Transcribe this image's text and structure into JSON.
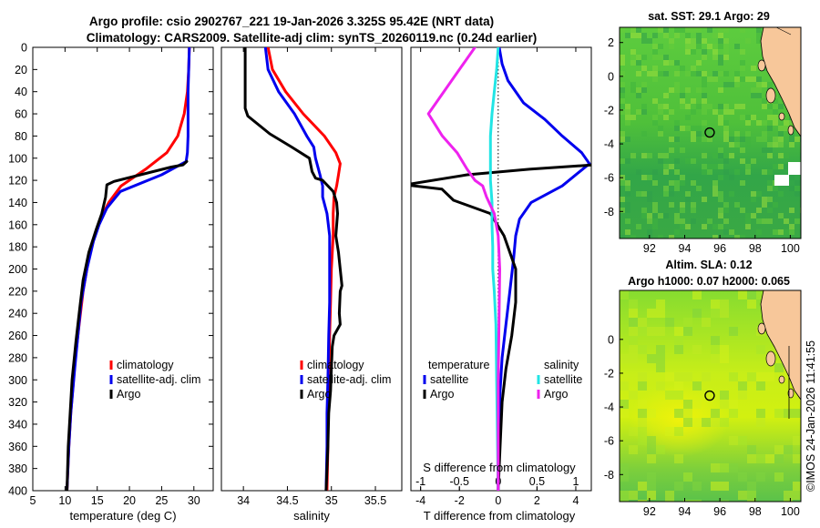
{
  "header": {
    "line1": "Argo profile: csio 2902767_221 19-Jan-2026 3.325S 95.42E (NRT data)",
    "line2": "Climatology: CARS2009. Satellite-adj clim: synTS_20260119.nc (0.24d earlier)"
  },
  "timestamp": "©IMOS 24-Jan-2026 11:41:55",
  "colors": {
    "climatology": "#ff0000",
    "satellite": "#0000ee",
    "argo": "#000000",
    "sal_satellite": "#22e5e5",
    "sal_argo": "#ee22ee",
    "sst_map": "#57c83a",
    "sla_map": "#8ee02a",
    "land": "#f7c79a",
    "gap": "#ffffff"
  },
  "chart_data": [
    {
      "id": "temperature",
      "type": "line",
      "xlabel": "temperature (deg C)",
      "ylabel": "",
      "xlim": [
        5,
        33
      ],
      "ylim": [
        400,
        0
      ],
      "xticks": [
        5,
        10,
        15,
        20,
        25,
        30
      ],
      "yticks": [
        0,
        20,
        40,
        60,
        80,
        100,
        120,
        140,
        160,
        180,
        200,
        220,
        240,
        260,
        280,
        300,
        320,
        340,
        360,
        380,
        400
      ],
      "legend": {
        "position": "lower-right",
        "entries": [
          "climatology",
          "satellite-adj. clim",
          "Argo"
        ]
      },
      "series": [
        {
          "name": "climatology",
          "color": "#ff0000",
          "x": [
            29.3,
            29.2,
            29,
            28.5,
            27.5,
            25.8,
            22.5,
            18.7,
            16.8,
            15.5,
            14.6,
            13.7,
            12.8,
            12.2,
            11.6,
            10.9,
            10.6,
            10.3
          ],
          "y": [
            0,
            20,
            40,
            60,
            80,
            95,
            110,
            125,
            140,
            155,
            170,
            190,
            220,
            250,
            280,
            330,
            360,
            400
          ]
        },
        {
          "name": "satellite-adj. clim",
          "color": "#0000ee",
          "x": [
            29.3,
            29.2,
            29.1,
            29.1,
            29.1,
            29,
            28.8,
            25,
            18.6,
            16.5,
            15.3,
            14.4,
            13.4,
            12.5,
            12,
            11.5,
            10.9,
            10.6,
            10.3
          ],
          "y": [
            0,
            20,
            40,
            60,
            80,
            95,
            103,
            115,
            130,
            145,
            160,
            175,
            200,
            230,
            260,
            290,
            330,
            360,
            400
          ]
        },
        {
          "name": "Argo",
          "color": "#000000",
          "x": [
            28.9,
            28.3,
            26.5,
            17.6,
            16.5,
            16.3,
            15.7,
            14.8,
            13.7,
            12.8,
            12.3,
            11.7,
            11.1,
            10.8,
            10.5,
            10.3
          ],
          "y": [
            103,
            106,
            108,
            121,
            124,
            135,
            150,
            165,
            185,
            210,
            235,
            265,
            300,
            330,
            360,
            400
          ]
        }
      ]
    },
    {
      "id": "salinity",
      "type": "line",
      "xlabel": "salinity",
      "ylabel": "",
      "xlim": [
        33.75,
        35.8
      ],
      "ylim": [
        400,
        0
      ],
      "xticks": [
        34,
        34.5,
        35,
        35.5
      ],
      "legend": {
        "position": "lower-right",
        "entries": [
          "climatology",
          "satellite-adj. clim",
          "Argo"
        ]
      },
      "series": [
        {
          "name": "climatology",
          "color": "#ff0000",
          "x": [
            34.28,
            34.33,
            34.48,
            34.68,
            34.92,
            35.05,
            35.1,
            35.08,
            35.06,
            35.03,
            35.02,
            35.02,
            35,
            34.99,
            34.98,
            34.97,
            34.96,
            34.96,
            34.95
          ],
          "y": [
            0,
            20,
            40,
            60,
            80,
            95,
            105,
            115,
            125,
            135,
            150,
            170,
            200,
            230,
            260,
            300,
            330,
            360,
            400
          ]
        },
        {
          "name": "satellite-adj. clim",
          "color": "#0000ee",
          "x": [
            34.25,
            34.28,
            34.4,
            34.58,
            34.72,
            34.8,
            34.82,
            34.87,
            34.9,
            34.9,
            34.95,
            34.98,
            34.98,
            34.98,
            34.97,
            34.96,
            34.95,
            34.95,
            34.94
          ],
          "y": [
            0,
            20,
            40,
            60,
            80,
            90,
            100,
            115,
            125,
            135,
            150,
            170,
            200,
            230,
            260,
            300,
            330,
            360,
            400
          ]
        },
        {
          "name": "Argo",
          "color": "#000000",
          "x": [
            34.02,
            34.02,
            34.02,
            34.02,
            34.05,
            34.3,
            34.55,
            34.75,
            34.78,
            34.82,
            34.9,
            35.02,
            35.06,
            35.07,
            35.05,
            35.08,
            35.1,
            35.12,
            35.1,
            35.09,
            35.1,
            35.03,
            35.01,
            35,
            34.99,
            34.97,
            34.96,
            34.95,
            34.94
          ],
          "y": [
            0,
            20,
            40,
            55,
            62,
            78,
            90,
            100,
            112,
            118,
            120,
            130,
            140,
            150,
            170,
            185,
            200,
            215,
            220,
            240,
            250,
            260,
            270,
            290,
            310,
            330,
            360,
            380,
            400
          ]
        }
      ]
    },
    {
      "id": "difference",
      "type": "line",
      "xlabel": "T difference from climatology",
      "xlabel_top": "S difference from climatology",
      "ylabel": "",
      "xlim": [
        -4.5,
        4.8
      ],
      "ylim": [
        400,
        0
      ],
      "xticks": [
        -4,
        -2,
        0,
        2,
        4
      ],
      "xlim_top": [
        -1.125,
        1.2
      ],
      "xticks_top": [
        -1,
        -0.5,
        0,
        0.5,
        1
      ],
      "xticklabels_top": [
        "-1",
        "-0.5",
        "0",
        "0.5",
        "1"
      ],
      "legend": {
        "position": "lower-center",
        "entries": [
          "temperature",
          "satellite",
          "Argo",
          "salinity",
          "satellite",
          "Argo"
        ]
      },
      "series": [
        {
          "name": "T satellite",
          "color": "#0000ee",
          "x": [
            0.05,
            0.2,
            0.5,
            1.3,
            2.4,
            3.3,
            4.3,
            4.7,
            3.3,
            1.7,
            1.1,
            0.9,
            0.8,
            0.6,
            0.4,
            0.2,
            0.1,
            0,
            0
          ],
          "y": [
            0,
            15,
            30,
            50,
            65,
            80,
            95,
            105,
            125,
            140,
            155,
            170,
            190,
            220,
            250,
            280,
            310,
            350,
            400
          ]
        },
        {
          "name": "T Argo",
          "color": "#000000",
          "x": [
            4.9,
            1.6,
            -1.6,
            -4.8,
            -2.9,
            -2.3,
            -0.4,
            0.3,
            0.9,
            0.9,
            0.7,
            0.4,
            0.2,
            0.1,
            0
          ],
          "y": [
            106,
            110,
            115,
            124,
            128,
            138,
            150,
            170,
            200,
            230,
            260,
            290,
            320,
            360,
            400
          ]
        },
        {
          "name": "S satellite",
          "color": "#22e5e5",
          "x": [
            0,
            -0.02,
            -0.05,
            -0.08,
            -0.1,
            -0.1,
            -0.1,
            -0.08,
            -0.08,
            -0.07,
            -0.07,
            -0.05,
            -0.03,
            -0.02,
            0
          ],
          "y": [
            0,
            20,
            40,
            60,
            80,
            100,
            120,
            140,
            160,
            180,
            200,
            220,
            250,
            300,
            400
          ]
        },
        {
          "name": "S Argo",
          "color": "#ee22ee",
          "x": [
            -0.3,
            -0.6,
            -0.9,
            -0.72,
            -0.53,
            -0.4,
            -0.3,
            -0.2,
            -0.15,
            -0.05,
            0,
            0.02,
            0,
            0
          ],
          "y": [
            0,
            30,
            60,
            80,
            95,
            110,
            120,
            125,
            135,
            150,
            170,
            200,
            300,
            400
          ]
        }
      ]
    },
    {
      "id": "sst_map",
      "type": "heatmap",
      "title": "sat. SST: 29.1 Argo: 29",
      "xlim": [
        90.3,
        100.6
      ],
      "ylim": [
        -9.6,
        2.9
      ],
      "xticks": [
        92,
        94,
        96,
        98,
        100
      ],
      "yticks": [
        -8,
        -6,
        -4,
        -2,
        0,
        2
      ],
      "marker": {
        "lon": 95.42,
        "lat": -3.325
      }
    },
    {
      "id": "sla_map",
      "type": "heatmap",
      "title": "Altim. SLA: 0.12",
      "subtitle": "Argo h1000: 0.07 h2000: 0.065",
      "xlim": [
        90.3,
        100.6
      ],
      "ylim": [
        -9.6,
        2.9
      ],
      "xticks": [
        92,
        94,
        96,
        98,
        100
      ],
      "yticks": [
        -8,
        -6,
        -4,
        -2,
        0
      ],
      "marker": {
        "lon": 95.42,
        "lat": -3.325
      }
    }
  ]
}
